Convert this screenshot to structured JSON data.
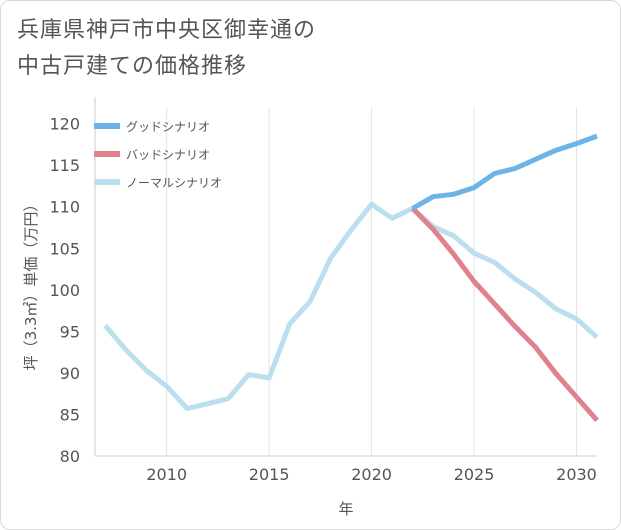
{
  "title_line1": "兵庫県神戸市中央区御幸通の",
  "title_line2": "中古戸建ての価格推移",
  "chart_data": {
    "type": "line",
    "xlabel": "年",
    "ylabel": "坪（3.3㎡）単価（万円）",
    "xlim": [
      2006.5,
      2031
    ],
    "ylim": [
      80,
      122
    ],
    "x_ticks": [
      2010,
      2015,
      2020,
      2025,
      2030
    ],
    "y_ticks": [
      80,
      85,
      90,
      95,
      100,
      105,
      110,
      115,
      120
    ],
    "grid": "vertical",
    "legend_position": "top-left",
    "series": [
      {
        "name": "グッドシナリオ",
        "color": "#6cb4e8",
        "x": [
          2022,
          2023,
          2024,
          2025,
          2026,
          2027,
          2028,
          2029,
          2030,
          2031
        ],
        "y": [
          109.8,
          111.2,
          111.5,
          112.3,
          114.0,
          114.6,
          115.7,
          116.8,
          117.6,
          118.5
        ]
      },
      {
        "name": "バッドシナリオ",
        "color": "#e0828e",
        "x": [
          2022,
          2023,
          2024,
          2025,
          2026,
          2027,
          2028,
          2029,
          2030,
          2031
        ],
        "y": [
          109.8,
          107.3,
          104.3,
          101.0,
          98.3,
          95.6,
          93.1,
          89.9,
          87.1,
          84.3
        ]
      },
      {
        "name": "ノーマルシナリオ",
        "color": "#bcdff0",
        "x": [
          2007,
          2008,
          2009,
          2010,
          2011,
          2012,
          2013,
          2014,
          2015,
          2016,
          2017,
          2018,
          2019,
          2020,
          2021,
          2022,
          2023,
          2024,
          2025,
          2026,
          2027,
          2028,
          2029,
          2030,
          2031
        ],
        "y": [
          95.7,
          92.8,
          90.3,
          88.4,
          85.7,
          86.3,
          86.9,
          89.8,
          89.4,
          95.9,
          98.6,
          103.8,
          107.2,
          110.3,
          108.6,
          109.8,
          107.6,
          106.5,
          104.4,
          103.3,
          101.3,
          99.7,
          97.7,
          96.5,
          94.3
        ]
      }
    ]
  }
}
